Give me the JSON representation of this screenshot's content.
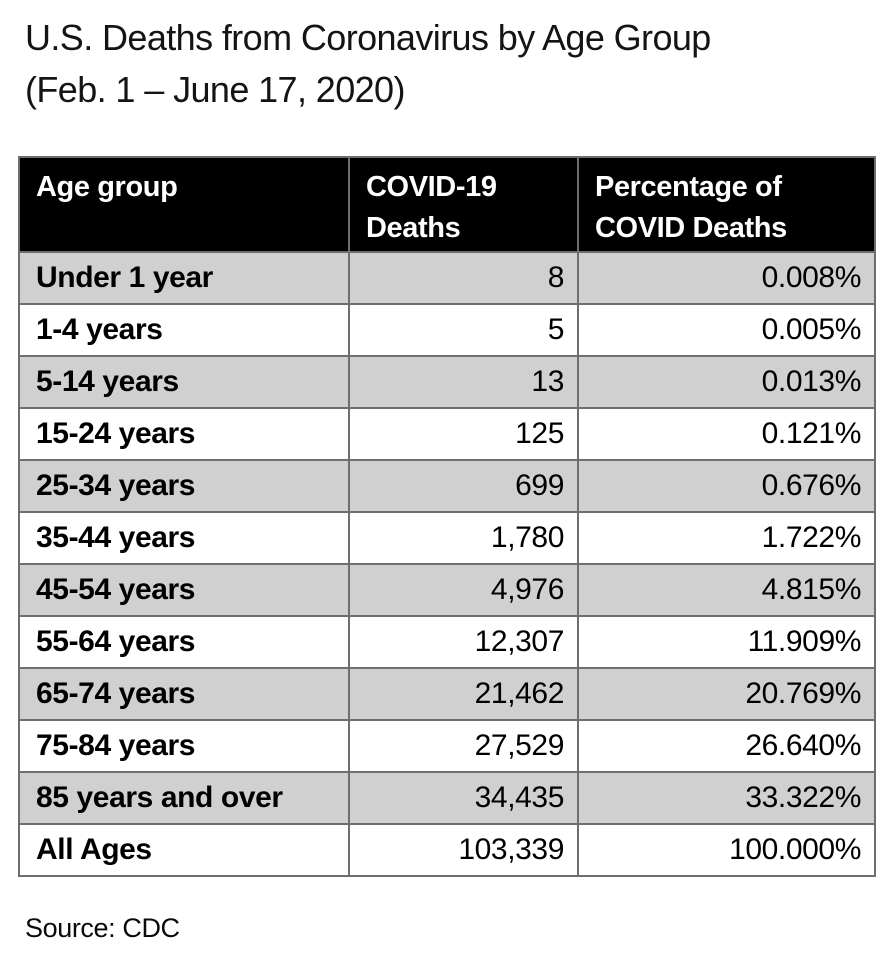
{
  "title": {
    "line1": "U.S. Deaths from Coronavirus by Age Group",
    "line2": "(Feb. 1 – June 17, 2020)"
  },
  "source": "Source: CDC",
  "colors": {
    "header_bg": "#000000",
    "header_text": "#ffffff",
    "row_alt_bg": "#d1d0d0",
    "row_bg": "#ffffff",
    "border": "#6e6e6e",
    "text": "#000000"
  },
  "table": {
    "headers": [
      {
        "line1": "Age group",
        "line2": ""
      },
      {
        "line1": "COVID-19",
        "line2": "Deaths"
      },
      {
        "line1": "Percentage of",
        "line2": "COVID Deaths"
      }
    ],
    "rows": [
      {
        "age": "Under 1 year",
        "deaths": "8",
        "pct": "0.008%"
      },
      {
        "age": "1-4 years",
        "deaths": "5",
        "pct": "0.005%"
      },
      {
        "age": "5-14 years",
        "deaths": "13",
        "pct": "0.013%"
      },
      {
        "age": "15-24 years",
        "deaths": "125",
        "pct": "0.121%"
      },
      {
        "age": "25-34 years",
        "deaths": "699",
        "pct": "0.676%"
      },
      {
        "age": "35-44 years",
        "deaths": "1,780",
        "pct": "1.722%"
      },
      {
        "age": "45-54 years",
        "deaths": "4,976",
        "pct": "4.815%"
      },
      {
        "age": "55-64 years",
        "deaths": "12,307",
        "pct": "11.909%"
      },
      {
        "age": "65-74 years",
        "deaths": "21,462",
        "pct": "20.769%"
      },
      {
        "age": "75-84 years",
        "deaths": "27,529",
        "pct": "26.640%"
      },
      {
        "age": "85 years and over",
        "deaths": "34,435",
        "pct": "33.322%"
      },
      {
        "age": "All Ages",
        "deaths": "103,339",
        "pct": "100.000%"
      }
    ]
  },
  "chart_data": {
    "type": "table",
    "title": "U.S. Deaths from Coronavirus by Age Group (Feb. 1 – June 17, 2020)",
    "columns": [
      "Age group",
      "COVID-19 Deaths",
      "Percentage of COVID Deaths"
    ],
    "categories": [
      "Under 1 year",
      "1-4 years",
      "5-14 years",
      "15-24 years",
      "25-34 years",
      "35-44 years",
      "45-54 years",
      "55-64 years",
      "65-74 years",
      "75-84 years",
      "85 years and over",
      "All Ages"
    ],
    "series": [
      {
        "name": "COVID-19 Deaths",
        "values": [
          8,
          5,
          13,
          125,
          699,
          1780,
          4976,
          12307,
          21462,
          27529,
          34435,
          103339
        ]
      },
      {
        "name": "Percentage of COVID Deaths",
        "values": [
          0.008,
          0.005,
          0.013,
          0.121,
          0.676,
          1.722,
          4.815,
          11.909,
          20.769,
          26.64,
          33.322,
          100.0
        ]
      }
    ],
    "source": "Source: CDC",
    "layout": {
      "striped_rows": true,
      "header_style": "black-bg-white-text",
      "alt_row_color": "#d1d0d0"
    }
  }
}
